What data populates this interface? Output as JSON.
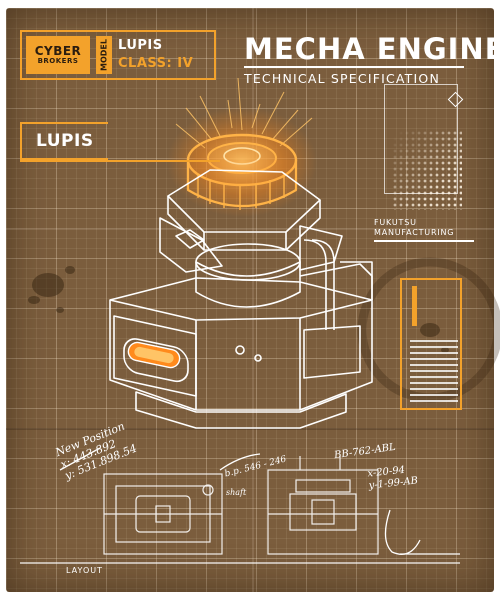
{
  "badge": {
    "brand_line1": "CYBER",
    "brand_line2": "BROKERS",
    "model_label": "MODEL",
    "name": "LUPIS",
    "class_label": "CLASS: IV"
  },
  "header": {
    "title": "MECHA ENGINE",
    "subtitle": "TECHNICAL SPECIFICATION"
  },
  "name_tag": "LUPIS",
  "manufacturer": {
    "line1": "FUKUTSU",
    "line2": "MANUFACTURING"
  },
  "notes": {
    "left_line1": "New Position",
    "left_line2": "x: 443.892",
    "left_line3": "y: 531.898.54",
    "mid_left": "b.p. 546 - 246",
    "mid_small": "shaft",
    "right_top": "BB-762-ABL",
    "right_line1": "x-20-94",
    "right_line2": "y-1-99-AB"
  },
  "footer": {
    "layout_label": "LAYOUT"
  },
  "colors": {
    "paper": "#7b5d3d",
    "accent": "#f3a22b",
    "glow": "#ff8a1c",
    "ink": "#ffffff"
  }
}
